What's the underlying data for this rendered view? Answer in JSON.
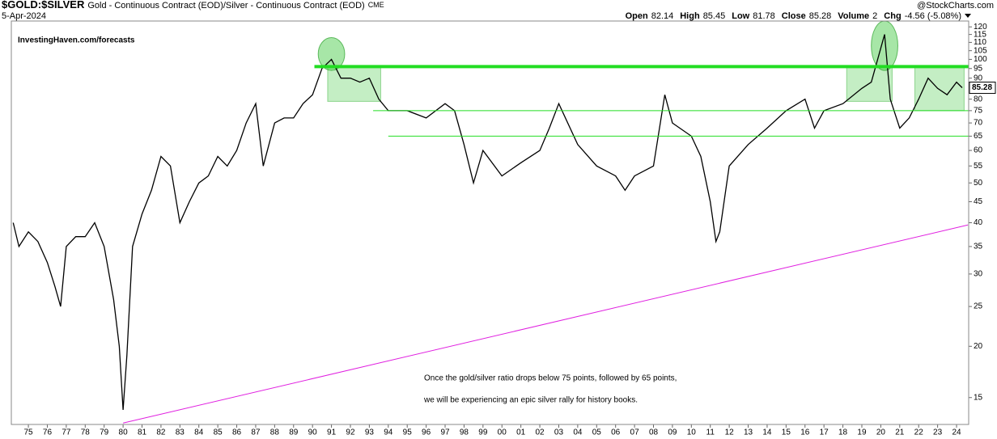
{
  "chart_data": {
    "type": "line",
    "symbol": "$GOLD:$SILVER",
    "description": "Gold - Continuous Contract (EOD)/Silver - Continuous Contract (EOD)",
    "exchange": "CME",
    "date": "5-Apr-2024",
    "source": "@StockCharts.com",
    "stats": [
      {
        "label": "Open",
        "value": 82.14
      },
      {
        "label": "High",
        "value": 85.45
      },
      {
        "label": "Low",
        "value": 81.78
      },
      {
        "label": "Close",
        "value": 85.28
      },
      {
        "label": "Volume",
        "value": 2
      },
      {
        "label": "Chg",
        "value": "-4.56 (-5.08%)"
      }
    ],
    "watermark": "InvestingHaven.com/forecasts",
    "annotation": [
      "Once the gold/silver ratio drops below 75 points, followed by 65 points,",
      "we will be experiencing an epic silver rally for history books."
    ],
    "color": "#000000",
    "log_scale": true,
    "x": [
      1974.2,
      1974.5,
      1975,
      1975.5,
      1976,
      1976.4,
      1976.7,
      1977,
      1977.5,
      1978,
      1978.5,
      1979,
      1979.5,
      1979.8,
      1980,
      1980.2,
      1980.5,
      1981,
      1981.5,
      1982,
      1982.5,
      1983,
      1983.5,
      1984,
      1984.5,
      1985,
      1985.5,
      1986,
      1986.5,
      1987,
      1987.4,
      1988,
      1988.5,
      1989,
      1989.5,
      1990,
      1990.5,
      1991,
      1991.5,
      1992,
      1992.5,
      1993,
      1993.5,
      1994,
      1995,
      1996,
      1997,
      1997.5,
      1998,
      1998.5,
      1999,
      2000,
      2001,
      2002,
      2002.5,
      2003,
      2004,
      2005,
      2006,
      2006.5,
      2007,
      2008,
      2008.6,
      2009,
      2010,
      2010.5,
      2011,
      2011.3,
      2011.5,
      2012,
      2013,
      2014,
      2015,
      2016,
      2016.5,
      2017,
      2018,
      2019,
      2019.5,
      2020.2,
      2020.5,
      2021,
      2021.5,
      2022,
      2022.5,
      2023,
      2023.5,
      2024,
      2024.3
    ],
    "values": [
      40,
      35,
      38,
      36,
      32,
      28,
      25,
      35,
      37,
      37,
      40,
      35,
      26,
      20,
      14,
      19,
      35,
      42,
      48,
      58,
      55,
      40,
      45,
      50,
      52,
      58,
      55,
      60,
      70,
      78,
      55,
      70,
      72,
      72,
      78,
      82,
      95,
      100,
      90,
      90,
      88,
      90,
      80,
      75,
      75,
      72,
      78,
      75,
      62,
      50,
      60,
      52,
      56,
      60,
      68,
      78,
      62,
      55,
      52,
      48,
      52,
      55,
      82,
      70,
      65,
      58,
      45,
      36,
      38,
      55,
      62,
      68,
      75,
      80,
      68,
      75,
      78,
      85,
      88,
      115,
      80,
      68,
      72,
      80,
      90,
      85,
      82,
      88,
      85.28
    ],
    "xlim": [
      1974.1,
      2024.64
    ],
    "ylim": [
      12.9,
      124
    ],
    "xticks": [
      {
        "value": 1975,
        "label": "75"
      },
      {
        "value": 1976,
        "label": "76"
      },
      {
        "value": 1977,
        "label": "77"
      },
      {
        "value": 1978,
        "label": "78"
      },
      {
        "value": 1979,
        "label": "79"
      },
      {
        "value": 1980,
        "label": "80"
      },
      {
        "value": 1981,
        "label": "81"
      },
      {
        "value": 1982,
        "label": "82"
      },
      {
        "value": 1983,
        "label": "83"
      },
      {
        "value": 1984,
        "label": "84"
      },
      {
        "value": 1985,
        "label": "85"
      },
      {
        "value": 1986,
        "label": "86"
      },
      {
        "value": 1987,
        "label": "87"
      },
      {
        "value": 1988,
        "label": "88"
      },
      {
        "value": 1989,
        "label": "89"
      },
      {
        "value": 1990,
        "label": "90"
      },
      {
        "value": 1991,
        "label": "91"
      },
      {
        "value": 1992,
        "label": "92"
      },
      {
        "value": 1993,
        "label": "93"
      },
      {
        "value": 1994,
        "label": "94"
      },
      {
        "value": 1995,
        "label": "95"
      },
      {
        "value": 1996,
        "label": "96"
      },
      {
        "value": 1997,
        "label": "97"
      },
      {
        "value": 1998,
        "label": "98"
      },
      {
        "value": 1999,
        "label": "99"
      },
      {
        "value": 2000,
        "label": "00"
      },
      {
        "value": 2001,
        "label": "01"
      },
      {
        "value": 2002,
        "label": "02"
      },
      {
        "value": 2003,
        "label": "03"
      },
      {
        "value": 2004,
        "label": "04"
      },
      {
        "value": 2005,
        "label": "05"
      },
      {
        "value": 2006,
        "label": "06"
      },
      {
        "value": 2007,
        "label": "07"
      },
      {
        "value": 2008,
        "label": "08"
      },
      {
        "value": 2009,
        "label": "09"
      },
      {
        "value": 2010,
        "label": "10"
      },
      {
        "value": 2011,
        "label": "11"
      },
      {
        "value": 2012,
        "label": "12"
      },
      {
        "value": 2013,
        "label": "13"
      },
      {
        "value": 2014,
        "label": "14"
      },
      {
        "value": 2015,
        "label": "15"
      },
      {
        "value": 2016,
        "label": "16"
      },
      {
        "value": 2017,
        "label": "17"
      },
      {
        "value": 2018,
        "label": "18"
      },
      {
        "value": 2019,
        "label": "19"
      },
      {
        "value": 2020,
        "label": "20"
      },
      {
        "value": 2021,
        "label": "21"
      },
      {
        "value": 2022,
        "label": "22"
      },
      {
        "value": 2023,
        "label": "23"
      },
      {
        "value": 2024,
        "label": "24"
      }
    ],
    "yticks": [
      15,
      20,
      25,
      30,
      35,
      40,
      45,
      50,
      55,
      60,
      65,
      70,
      75,
      80,
      85,
      90,
      95,
      100,
      105,
      110,
      115,
      120
    ],
    "levels": [
      {
        "value": 96,
        "from": 1990.1,
        "color": "#22dd22",
        "width": 4
      },
      {
        "value": 75,
        "from": 1993.2,
        "color": "#22dd22",
        "width": 1
      },
      {
        "value": 65,
        "from": 1994.0,
        "color": "#22dd22",
        "width": 1
      }
    ],
    "trendline": {
      "x": [
        1980,
        2024.6
      ],
      "y": [
        13,
        39.5
      ],
      "color": "#e020e0"
    },
    "zones": [
      {
        "x0": 1990.8,
        "x1": 1993.6,
        "y0": 79,
        "y1": 96
      },
      {
        "x0": 2018.2,
        "x1": 2020.6,
        "y0": 79,
        "y1": 96
      },
      {
        "x0": 2021.8,
        "x1": 2024.4,
        "y0": 75,
        "y1": 96
      }
    ],
    "ellipses": [
      {
        "x0": 1990.3,
        "x1": 1991.7,
        "y0": 94,
        "y1": 113
      },
      {
        "x0": 2019.5,
        "x1": 2020.9,
        "y0": 94,
        "y1": 124
      }
    ]
  }
}
